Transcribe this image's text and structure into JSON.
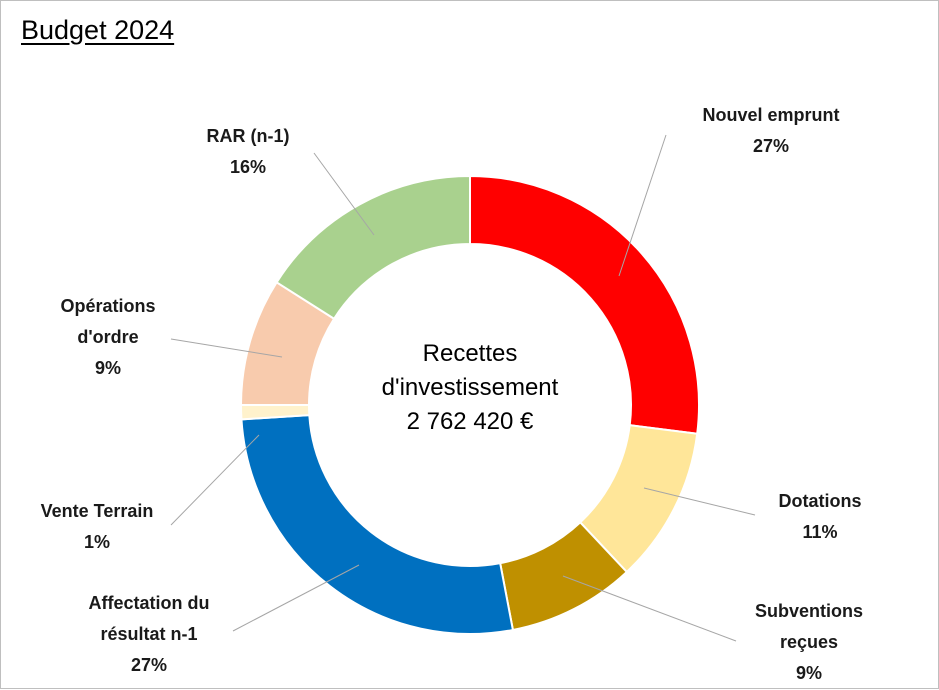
{
  "page": {
    "title": "Budget 2024"
  },
  "chart_data": {
    "type": "donut",
    "title": "Budget 2024",
    "center_label": [
      "Recettes",
      "d'investissement",
      "2 762 420 €"
    ],
    "slices": [
      {
        "name": "Nouvel emprunt",
        "label_lines": [
          "Nouvel emprunt"
        ],
        "percent_label": "27%",
        "value": 27,
        "color": "#ff0000"
      },
      {
        "name": "Dotations",
        "label_lines": [
          "Dotations"
        ],
        "percent_label": "11%",
        "value": 11,
        "color": "#ffe699"
      },
      {
        "name": "Subventions reçues",
        "label_lines": [
          "Subventions",
          "reçues"
        ],
        "percent_label": "9%",
        "value": 9,
        "color": "#bf9000"
      },
      {
        "name": "Affectation du résultat n-1",
        "label_lines": [
          "Affectation du",
          "résultat n-1"
        ],
        "percent_label": "27%",
        "value": 27,
        "color": "#0070c0"
      },
      {
        "name": "Vente Terrain",
        "label_lines": [
          "Vente Terrain"
        ],
        "percent_label": "1%",
        "value": 1,
        "color": "#fff2cc"
      },
      {
        "name": "Opérations d'ordre",
        "label_lines": [
          "Opérations",
          "d'ordre"
        ],
        "percent_label": "9%",
        "value": 9,
        "color": "#f8cbad"
      },
      {
        "name": "RAR (n-1)",
        "label_lines": [
          "RAR (n-1)"
        ],
        "percent_label": "16%",
        "value": 16,
        "color": "#a9d18e"
      }
    ],
    "legend": "none"
  }
}
